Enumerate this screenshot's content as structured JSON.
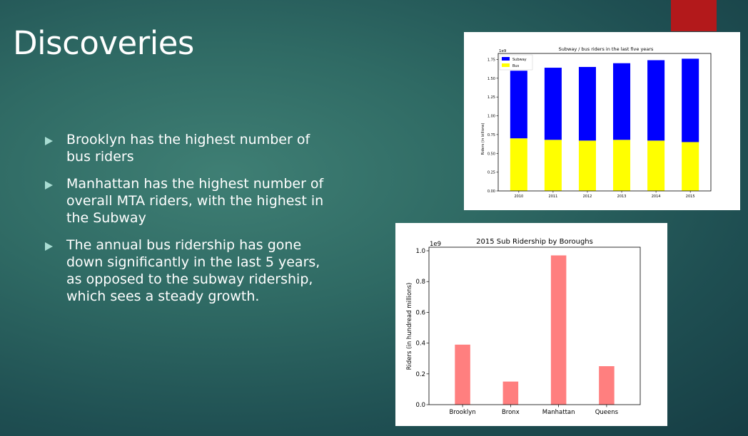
{
  "slide": {
    "title": "Discoveries",
    "accent_color": "#b3191b",
    "bullets": [
      "Brooklyn has the highest number of bus riders",
      "Manhattan has the highest number of overall MTA riders, with the highest in the Subway",
      "The annual bus ridership has gone down significantly in the last 5 years, as opposed to the subway ridership, which sees a steady growth."
    ]
  },
  "chart_data": [
    {
      "type": "bar",
      "stacked": true,
      "title": "Subway / bus riders in the last five years",
      "xlabel": "",
      "ylabel": "Riders (in billions)",
      "scale_label": "1e9",
      "categories": [
        "2010",
        "2011",
        "2012",
        "2013",
        "2014",
        "2015"
      ],
      "series": [
        {
          "name": "Bus",
          "color": "#ffff00",
          "values": [
            0.7,
            0.68,
            0.67,
            0.68,
            0.67,
            0.65
          ]
        },
        {
          "name": "Subway",
          "color": "#0000ff",
          "values": [
            0.9,
            0.96,
            0.98,
            1.02,
            1.07,
            1.11
          ]
        }
      ],
      "yticks": [
        "0.00",
        "0.25",
        "0.50",
        "0.75",
        "1.00",
        "1.25",
        "1.50",
        "1.75"
      ],
      "ylim": [
        0,
        1.83
      ],
      "legend": "top-left",
      "grid": false
    },
    {
      "type": "bar",
      "title": "2015 Sub Ridership by Boroughs",
      "xlabel": "",
      "ylabel": "Riders (in hundread millions)",
      "scale_label": "1e9",
      "categories": [
        "Brooklyn",
        "Bronx",
        "Manhattan",
        "Queens"
      ],
      "values": [
        0.39,
        0.15,
        0.97,
        0.25
      ],
      "color": "#ff7f7f",
      "yticks": [
        "0.0",
        "0.2",
        "0.4",
        "0.6",
        "0.8",
        "1.0"
      ],
      "ylim": [
        0,
        1.0
      ],
      "grid": false
    }
  ]
}
